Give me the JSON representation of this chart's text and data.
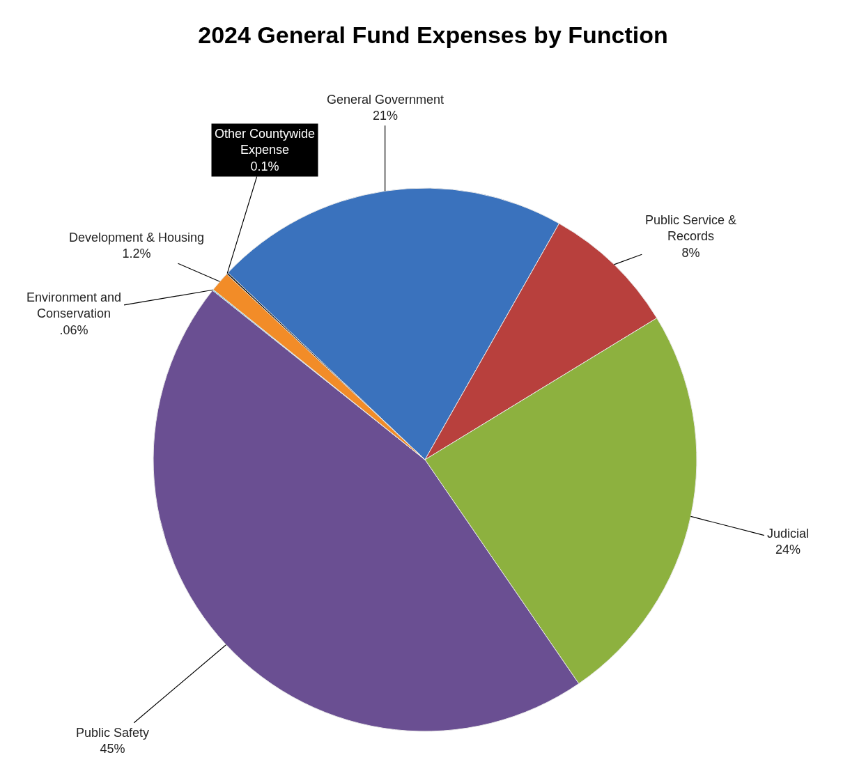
{
  "chart_data": {
    "type": "pie",
    "title": "2024 General Fund Expenses by Function",
    "categories": [
      "General Government",
      "Public Service &\nRecords",
      "Judicial",
      "Public Safety",
      "Environment and\nConservation",
      "Development & Housing",
      "Other Countywide\nExpense"
    ],
    "values": [
      21,
      8,
      24,
      45,
      0.06,
      1.2,
      0.1
    ],
    "value_labels": [
      "21%",
      "8%",
      "24%",
      "45%",
      ".06%",
      "1.2%",
      "0.1%"
    ],
    "colors": [
      "#3a72bd",
      "#b8403d",
      "#8db13f",
      "#6a4f92",
      "#33b0d6",
      "#f28c28",
      "#1a1a1a"
    ],
    "legend": false
  }
}
